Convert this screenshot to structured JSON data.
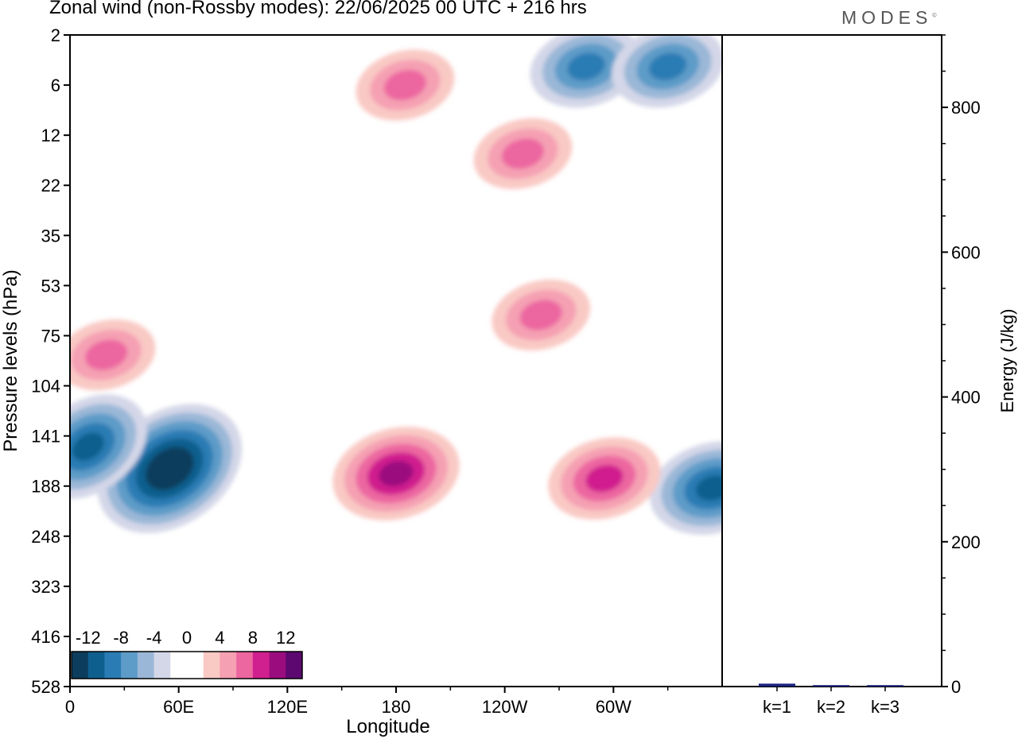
{
  "title": "Zonal wind (non-Rossby modes):  22/06/2025  00 UTC  + 216 hrs",
  "brand": "MODES",
  "brand_mark": "©",
  "chart_data": [
    {
      "type": "heatmap",
      "xlabel": "Longitude",
      "ylabel": "Pressure levels (hPa)",
      "x_ticks": [
        "0",
        "60E",
        "120E",
        "180",
        "120W",
        "60W"
      ],
      "y_ticks": [
        "2",
        "6",
        "12",
        "22",
        "35",
        "53",
        "75",
        "104",
        "141",
        "188",
        "248",
        "323",
        "416",
        "528"
      ],
      "xlim": [
        0,
        360
      ],
      "grid": false,
      "colorbar": {
        "tick_labels": [
          "-12",
          "-8",
          "-4",
          "0",
          "4",
          "8",
          "12"
        ],
        "colors": [
          "#0d3d5c",
          "#0f5f8e",
          "#2a7cb4",
          "#5d9bc8",
          "#9ab7d7",
          "#d4d7e8",
          "#ffffff",
          "#ffffff",
          "#f9c9c4",
          "#f5a0b3",
          "#ec66a0",
          "#d01f8e",
          "#9b0d7f",
          "#5d0870"
        ],
        "placement": "bottom-left"
      },
      "features": [
        {
          "sign": "negative",
          "lon": 55,
          "level": 170,
          "peak": -14
        },
        {
          "sign": "negative",
          "lon": 10,
          "level": 150,
          "peak": -10
        },
        {
          "sign": "negative",
          "lon": 355,
          "level": 190,
          "peak": -10
        },
        {
          "sign": "negative",
          "lon": 285,
          "level": 4,
          "peak": -8
        },
        {
          "sign": "negative",
          "lon": 330,
          "level": 4,
          "peak": -8
        },
        {
          "sign": "positive",
          "lon": 180,
          "level": 175,
          "peak": 10
        },
        {
          "sign": "positive",
          "lon": 295,
          "level": 180,
          "peak": 8
        },
        {
          "sign": "positive",
          "lon": 20,
          "level": 85,
          "peak": 6
        },
        {
          "sign": "positive",
          "lon": 260,
          "level": 65,
          "peak": 6
        },
        {
          "sign": "positive",
          "lon": 250,
          "level": 15,
          "peak": 6
        },
        {
          "sign": "positive",
          "lon": 185,
          "level": 6,
          "peak": 6
        }
      ]
    },
    {
      "type": "bar",
      "ylabel": "Energy (J/kg)",
      "categories": [
        "k=1",
        "k=2",
        "k=3"
      ],
      "values": [
        4,
        2,
        2
      ],
      "ylim": [
        0,
        900
      ],
      "y_ticks": [
        "0",
        "200",
        "400",
        "600",
        "800"
      ],
      "bar_color": "#1a237e"
    }
  ]
}
